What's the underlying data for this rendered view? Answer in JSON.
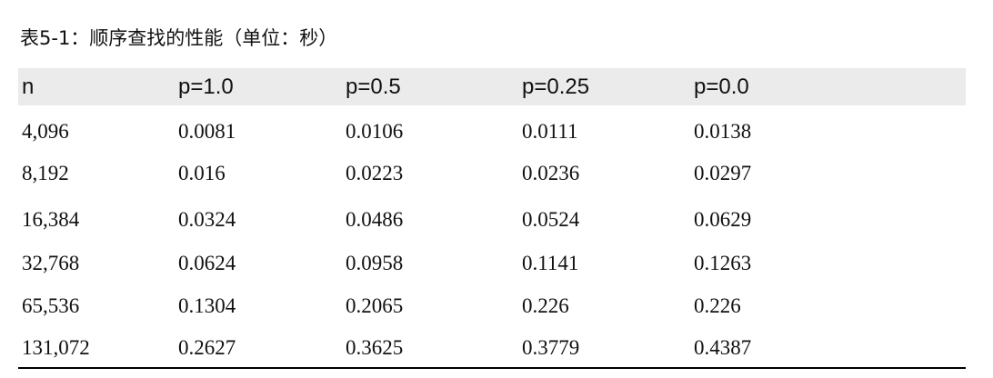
{
  "caption": "表5-1：顺序查找的性能（单位：秒）",
  "table": {
    "headers": [
      "n",
      "p=1.0",
      "p=0.5",
      "p=0.25",
      "p=0.0"
    ],
    "rows": [
      [
        "4,096",
        "0.0081",
        "0.0106",
        "0.0111",
        "0.0138"
      ],
      [
        "8,192",
        "0.016",
        "0.0223",
        "0.0236",
        "0.0297"
      ],
      [
        "16,384",
        "0.0324",
        "0.0486",
        "0.0524",
        "0.0629"
      ],
      [
        "32,768",
        "0.0624",
        "0.0958",
        "0.1141",
        "0.1263"
      ],
      [
        "65,536",
        "0.1304",
        "0.2065",
        "0.226",
        "0.226"
      ],
      [
        "131,072",
        "0.2627",
        "0.3625",
        "0.3779",
        "0.4387"
      ]
    ]
  }
}
